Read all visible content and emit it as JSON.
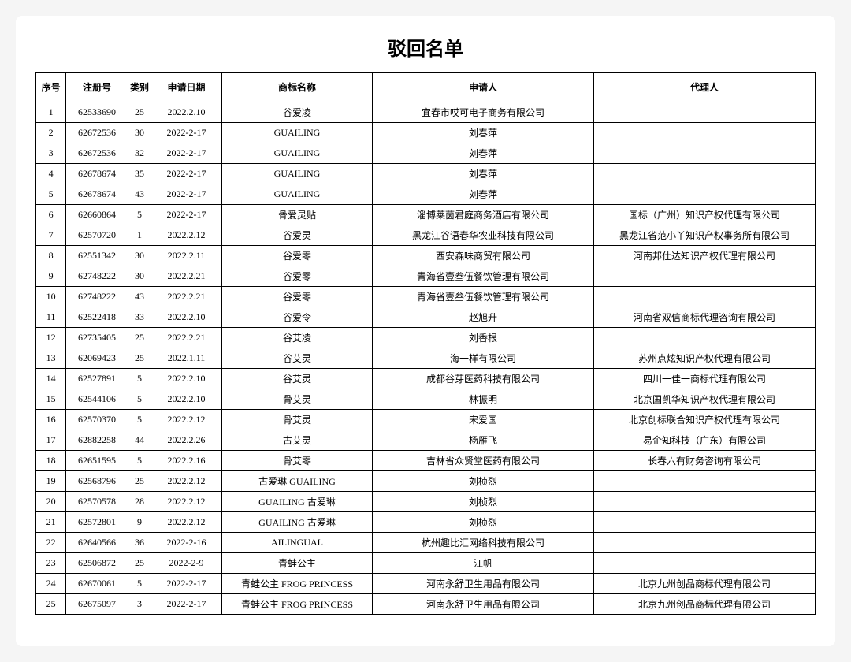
{
  "title": "驳回名单",
  "columns": [
    "序号",
    "注册号",
    "类别",
    "申请日期",
    "商标名称",
    "申请人",
    "代理人"
  ],
  "rows": [
    [
      "1",
      "62533690",
      "25",
      "2022.2.10",
      "谷爱凌",
      "宜春市哎可电子商务有限公司",
      ""
    ],
    [
      "2",
      "62672536",
      "30",
      "2022-2-17",
      "GUAILING",
      "刘春萍",
      ""
    ],
    [
      "3",
      "62672536",
      "32",
      "2022-2-17",
      "GUAILING",
      "刘春萍",
      ""
    ],
    [
      "4",
      "62678674",
      "35",
      "2022-2-17",
      "GUAILING",
      "刘春萍",
      ""
    ],
    [
      "5",
      "62678674",
      "43",
      "2022-2-17",
      "GUAILING",
      "刘春萍",
      ""
    ],
    [
      "6",
      "62660864",
      "5",
      "2022-2-17",
      "骨爱灵贴",
      "淄博莱茵君庭商务酒店有限公司",
      "国标（广州）知识产权代理有限公司"
    ],
    [
      "7",
      "62570720",
      "1",
      "2022.2.12",
      "谷爱灵",
      "黑龙江谷语春华农业科技有限公司",
      "黑龙江省范小丫知识产权事务所有限公司"
    ],
    [
      "8",
      "62551342",
      "30",
      "2022.2.11",
      "谷爱零",
      "西安森味商贸有限公司",
      "河南邦仕达知识产权代理有限公司"
    ],
    [
      "9",
      "62748222",
      "30",
      "2022.2.21",
      "谷爱零",
      "青海省壹叁伍餐饮管理有限公司",
      ""
    ],
    [
      "10",
      "62748222",
      "43",
      "2022.2.21",
      "谷爱零",
      "青海省壹叁伍餐饮管理有限公司",
      ""
    ],
    [
      "11",
      "62522418",
      "33",
      "2022.2.10",
      "谷爱令",
      "赵旭升",
      "河南省双信商标代理咨询有限公司"
    ],
    [
      "12",
      "62735405",
      "25",
      "2022.2.21",
      "谷艾凌",
      "刘香根",
      ""
    ],
    [
      "13",
      "62069423",
      "25",
      "2022.1.11",
      "谷艾灵",
      "海一样有限公司",
      "苏州点炫知识产权代理有限公司"
    ],
    [
      "14",
      "62527891",
      "5",
      "2022.2.10",
      "谷艾灵",
      "成都谷芽医药科技有限公司",
      "四川一佳一商标代理有限公司"
    ],
    [
      "15",
      "62544106",
      "5",
      "2022.2.10",
      "骨艾灵",
      "林振明",
      "北京国凯华知识产权代理有限公司"
    ],
    [
      "16",
      "62570370",
      "5",
      "2022.2.12",
      "骨艾灵",
      "宋爱国",
      "北京创标联合知识产权代理有限公司"
    ],
    [
      "17",
      "62882258",
      "44",
      "2022.2.26",
      "古艾灵",
      "杨雁飞",
      "易企知科技（广东）有限公司"
    ],
    [
      "18",
      "62651595",
      "5",
      "2022.2.16",
      "骨艾零",
      "吉林省众贤堂医药有限公司",
      "长春六有财务咨询有限公司"
    ],
    [
      "19",
      "62568796",
      "25",
      "2022.2.12",
      "古爱琳 GUAILING",
      "刘桢烈",
      ""
    ],
    [
      "20",
      "62570578",
      "28",
      "2022.2.12",
      "GUAILING 古爱琳",
      "刘桢烈",
      ""
    ],
    [
      "21",
      "62572801",
      "9",
      "2022.2.12",
      "GUAILING 古爱琳",
      "刘桢烈",
      ""
    ],
    [
      "22",
      "62640566",
      "36",
      "2022-2-16",
      "AILINGUAL",
      "杭州趣比汇网络科技有限公司",
      ""
    ],
    [
      "23",
      "62506872",
      "25",
      "2022-2-9",
      "青蛙公主",
      "江帆",
      ""
    ],
    [
      "24",
      "62670061",
      "5",
      "2022-2-17",
      "青蛙公主 FROG PRINCESS",
      "河南永舒卫生用品有限公司",
      "北京九州创品商标代理有限公司"
    ],
    [
      "25",
      "62675097",
      "3",
      "2022-2-17",
      "青蛙公主 FROG PRINCESS",
      "河南永舒卫生用品有限公司",
      "北京九州创品商标代理有限公司"
    ]
  ]
}
